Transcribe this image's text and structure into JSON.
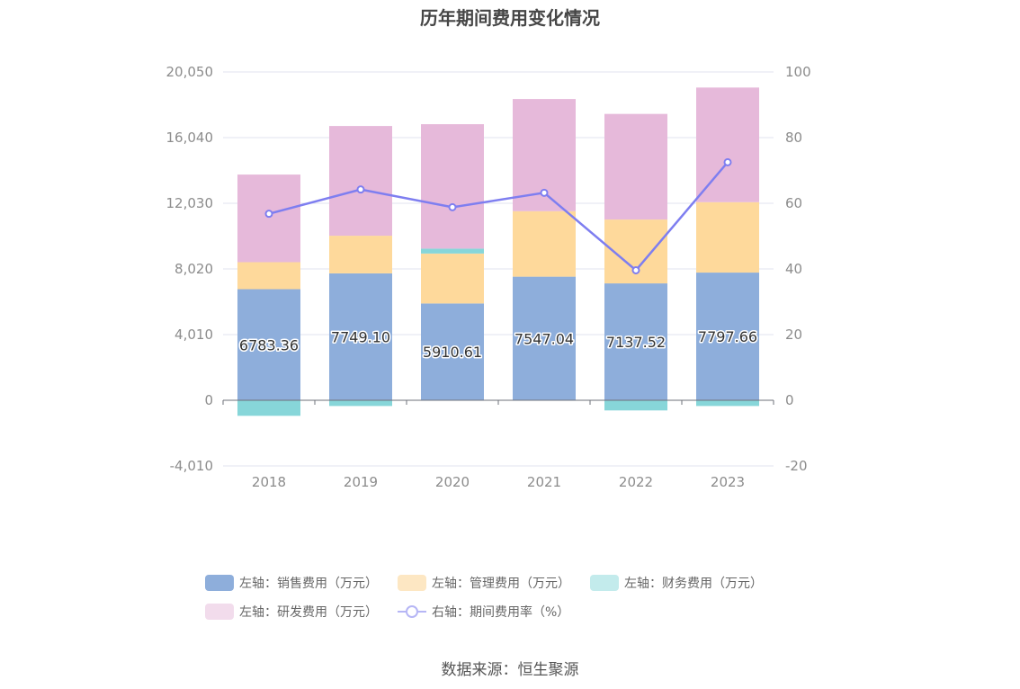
{
  "chart_data": {
    "type": "bar",
    "title": "历年期间费用变化情况",
    "categories": [
      "2018",
      "2019",
      "2020",
      "2021",
      "2022",
      "2023"
    ],
    "left_axis": {
      "min": -4010,
      "max": 20050,
      "ticks": [
        "-4,010",
        "0",
        "4,010",
        "8,020",
        "12,030",
        "16,040",
        "20,050"
      ]
    },
    "right_axis": {
      "min": -20,
      "max": 100,
      "ticks": [
        "-20",
        "0",
        "20",
        "40",
        "60",
        "80",
        "100"
      ]
    },
    "grid": true,
    "legend_position": "bottom",
    "series": [
      {
        "name": "左轴：销售费用（万元）",
        "type": "bar",
        "color": "#8eaedb",
        "values": [
          6783.36,
          7749.1,
          5910.61,
          7547.04,
          7137.52,
          7797.66
        ],
        "data_labels": [
          "6783.36",
          "7749.10",
          "5910.61",
          "7547.04",
          "7137.52",
          "7797.66"
        ]
      },
      {
        "name": "左轴：管理费用（万元）",
        "type": "bar",
        "color": "#fed99b",
        "values": [
          1650,
          2300,
          3050,
          4000,
          3900,
          4300
        ]
      },
      {
        "name": "左轴：财务费用（万元）",
        "type": "bar",
        "color": "#87d6d9",
        "values": [
          -950,
          -350,
          300,
          -20,
          -620,
          -350
        ]
      },
      {
        "name": "左轴：研发费用（万元）",
        "type": "bar",
        "color": "#e6b9da",
        "values": [
          5350,
          6700,
          7600,
          6850,
          6450,
          7000
        ]
      },
      {
        "name": "右轴：期间费用率（%）",
        "type": "line",
        "color": "#7e7ef0",
        "values": [
          56.8,
          64.2,
          58.8,
          63.2,
          39.6,
          72.5
        ]
      }
    ]
  },
  "source_note": "数据来源：恒生聚源"
}
